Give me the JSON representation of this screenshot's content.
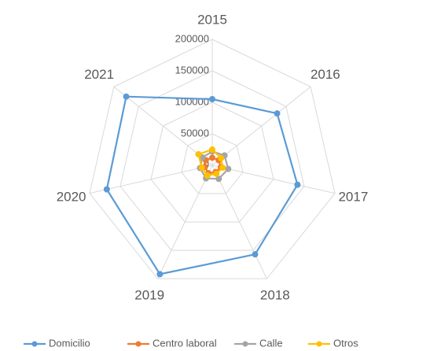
{
  "chart_data": {
    "type": "radar",
    "categories": [
      "2015",
      "2016",
      "2017",
      "2018",
      "2019",
      "2020",
      "2021"
    ],
    "series": [
      {
        "name": "Domicilio",
        "color": "#5b9bd5",
        "values": [
          105000,
          132000,
          139000,
          157000,
          192000,
          172000,
          175000
        ]
      },
      {
        "name": "Centro laboral",
        "color": "#ed7d31",
        "values": [
          12000,
          13000,
          14000,
          12000,
          14000,
          12000,
          13000
        ]
      },
      {
        "name": "Calle",
        "color": "#a5a5a5",
        "values": [
          22000,
          25000,
          26000,
          24000,
          23000,
          20000,
          20000
        ]
      },
      {
        "name": "Otros",
        "color": "#ffc000",
        "values": [
          25000,
          18000,
          17000,
          15000,
          18000,
          17000,
          28000
        ]
      }
    ],
    "ylim": [
      0,
      200000
    ],
    "yticks": [
      0,
      50000,
      100000,
      150000,
      200000
    ],
    "grid": true
  }
}
